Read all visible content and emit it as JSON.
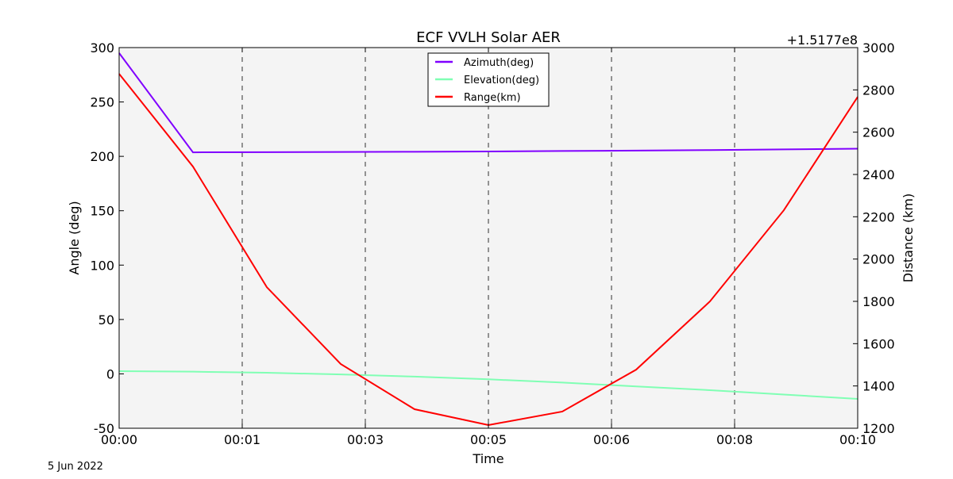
{
  "chart_data": {
    "type": "line",
    "title": "ECF VVLH Solar AER",
    "xlabel": "Time",
    "ylabel": "Angle (deg)",
    "y2label": "Distance (km)",
    "y2_offset_label": "+1.5177e8",
    "footnote": "5 Jun 2022",
    "x_minutes": [
      0,
      1,
      2,
      3,
      4,
      5,
      6,
      7,
      8,
      9,
      10
    ],
    "xlim": [
      0,
      10
    ],
    "x_ticks": [
      0,
      1.6667,
      3.3333,
      5,
      6.6667,
      8.3333,
      10
    ],
    "x_tick_labels": [
      "00:00",
      "00:01",
      "00:03",
      "00:05",
      "00:06",
      "00:08",
      "00:10"
    ],
    "ylim": [
      -50,
      300
    ],
    "y_ticks": [
      -50,
      0,
      50,
      100,
      150,
      200,
      250,
      300
    ],
    "y2lim": [
      1200,
      3000
    ],
    "y2_ticks": [
      1200,
      1400,
      1600,
      1800,
      2000,
      2200,
      2400,
      2600,
      2800,
      3000
    ],
    "grid": "vertical dashed at x ticks",
    "background": "#f4f4f4",
    "legend_position": "upper-center",
    "series": [
      {
        "name": "Azimuth(deg)",
        "axis": "left",
        "color": "#8000ff",
        "values": [
          295,
          203.7,
          203.8,
          204,
          204.2,
          204.5,
          204.9,
          205.3,
          205.8,
          206.4,
          207
        ]
      },
      {
        "name": "Elevation(deg)",
        "axis": "left",
        "color": "#80ffb4",
        "values": [
          2.5,
          2.0,
          1.0,
          -0.5,
          -2.5,
          -5,
          -8,
          -11.5,
          -15,
          -19,
          -23
        ]
      },
      {
        "name": "Range(km)",
        "axis": "right",
        "color": "#ff0000",
        "values": [
          2876,
          2437,
          1867,
          1504,
          1290,
          1215,
          1279,
          1477,
          1800,
          2231,
          2767
        ]
      }
    ]
  }
}
